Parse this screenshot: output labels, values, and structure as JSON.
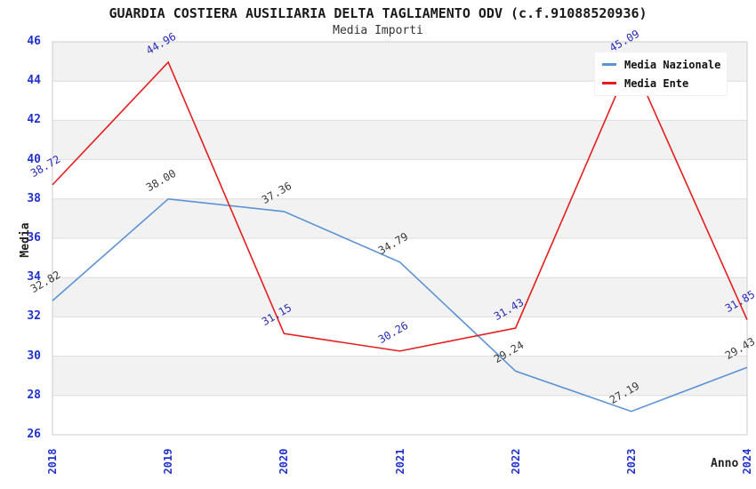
{
  "header": {
    "title": "GUARDIA COSTIERA AUSILIARIA DELTA TAGLIAMENTO ODV (c.f.91088520936)",
    "subtitle": "Media Importi"
  },
  "chart_data": {
    "type": "line",
    "categories": [
      "2018",
      "2019",
      "2020",
      "2021",
      "2022",
      "2023",
      "2024"
    ],
    "series": [
      {
        "name": "Media Nazionale",
        "color": "#5c93d4",
        "label_color": "#3a3a3a",
        "values": [
          32.82,
          38.0,
          37.36,
          34.79,
          29.24,
          27.19,
          29.43
        ]
      },
      {
        "name": "Media Ente",
        "color": "#e41e1e",
        "label_color": "#2a2ab8",
        "values": [
          38.72,
          44.96,
          31.15,
          30.26,
          31.43,
          45.09,
          31.85
        ]
      }
    ],
    "xlabel": "Anno",
    "ylabel": "Media",
    "ylim": [
      26,
      46
    ],
    "ytick_step": 2,
    "grid": "horizontal-bands-alternating",
    "legend_position": "top-right",
    "tick_label_color": "#2233cc",
    "band_color": "#f2f2f2",
    "gridline_color": "#dddddd",
    "border_color": "#cccccc"
  }
}
